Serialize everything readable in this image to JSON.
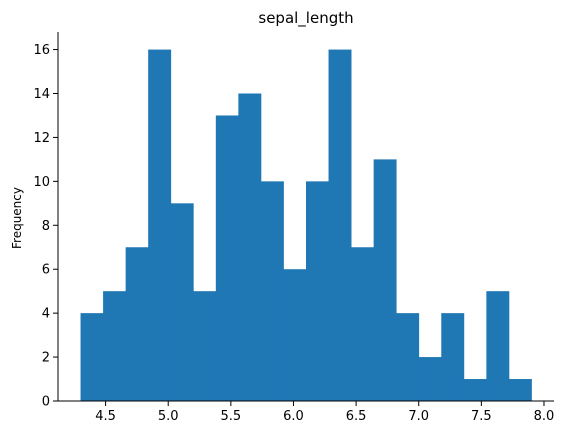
{
  "chart_data": {
    "type": "bar",
    "title": "sepal_length",
    "xlabel": "",
    "ylabel": "Frequency",
    "bin_edges": [
      4.3,
      4.48,
      4.66,
      4.84,
      5.02,
      5.2,
      5.38,
      5.56,
      5.74,
      5.92,
      6.1,
      6.28,
      6.46,
      6.64,
      6.82,
      7.0,
      7.18,
      7.36,
      7.54,
      7.72,
      7.9
    ],
    "values": [
      4,
      5,
      7,
      16,
      9,
      5,
      13,
      14,
      10,
      6,
      10,
      16,
      7,
      11,
      4,
      2,
      4,
      1,
      5,
      1
    ],
    "xlim": [
      4.12,
      8.08
    ],
    "ylim": [
      0,
      16.8
    ],
    "xticks": [
      4.5,
      5.0,
      5.5,
      6.0,
      6.5,
      7.0,
      7.5,
      8.0
    ],
    "xtick_labels": [
      "4.5",
      "5.0",
      "5.5",
      "6.0",
      "6.5",
      "7.0",
      "7.5",
      "8.0"
    ],
    "yticks": [
      0,
      2,
      4,
      6,
      8,
      10,
      12,
      14,
      16
    ],
    "ytick_labels": [
      "0",
      "2",
      "4",
      "6",
      "8",
      "10",
      "12",
      "14",
      "16"
    ],
    "grid": false,
    "bar_color": "#1f77b4",
    "spines": [
      "left",
      "bottom"
    ]
  }
}
